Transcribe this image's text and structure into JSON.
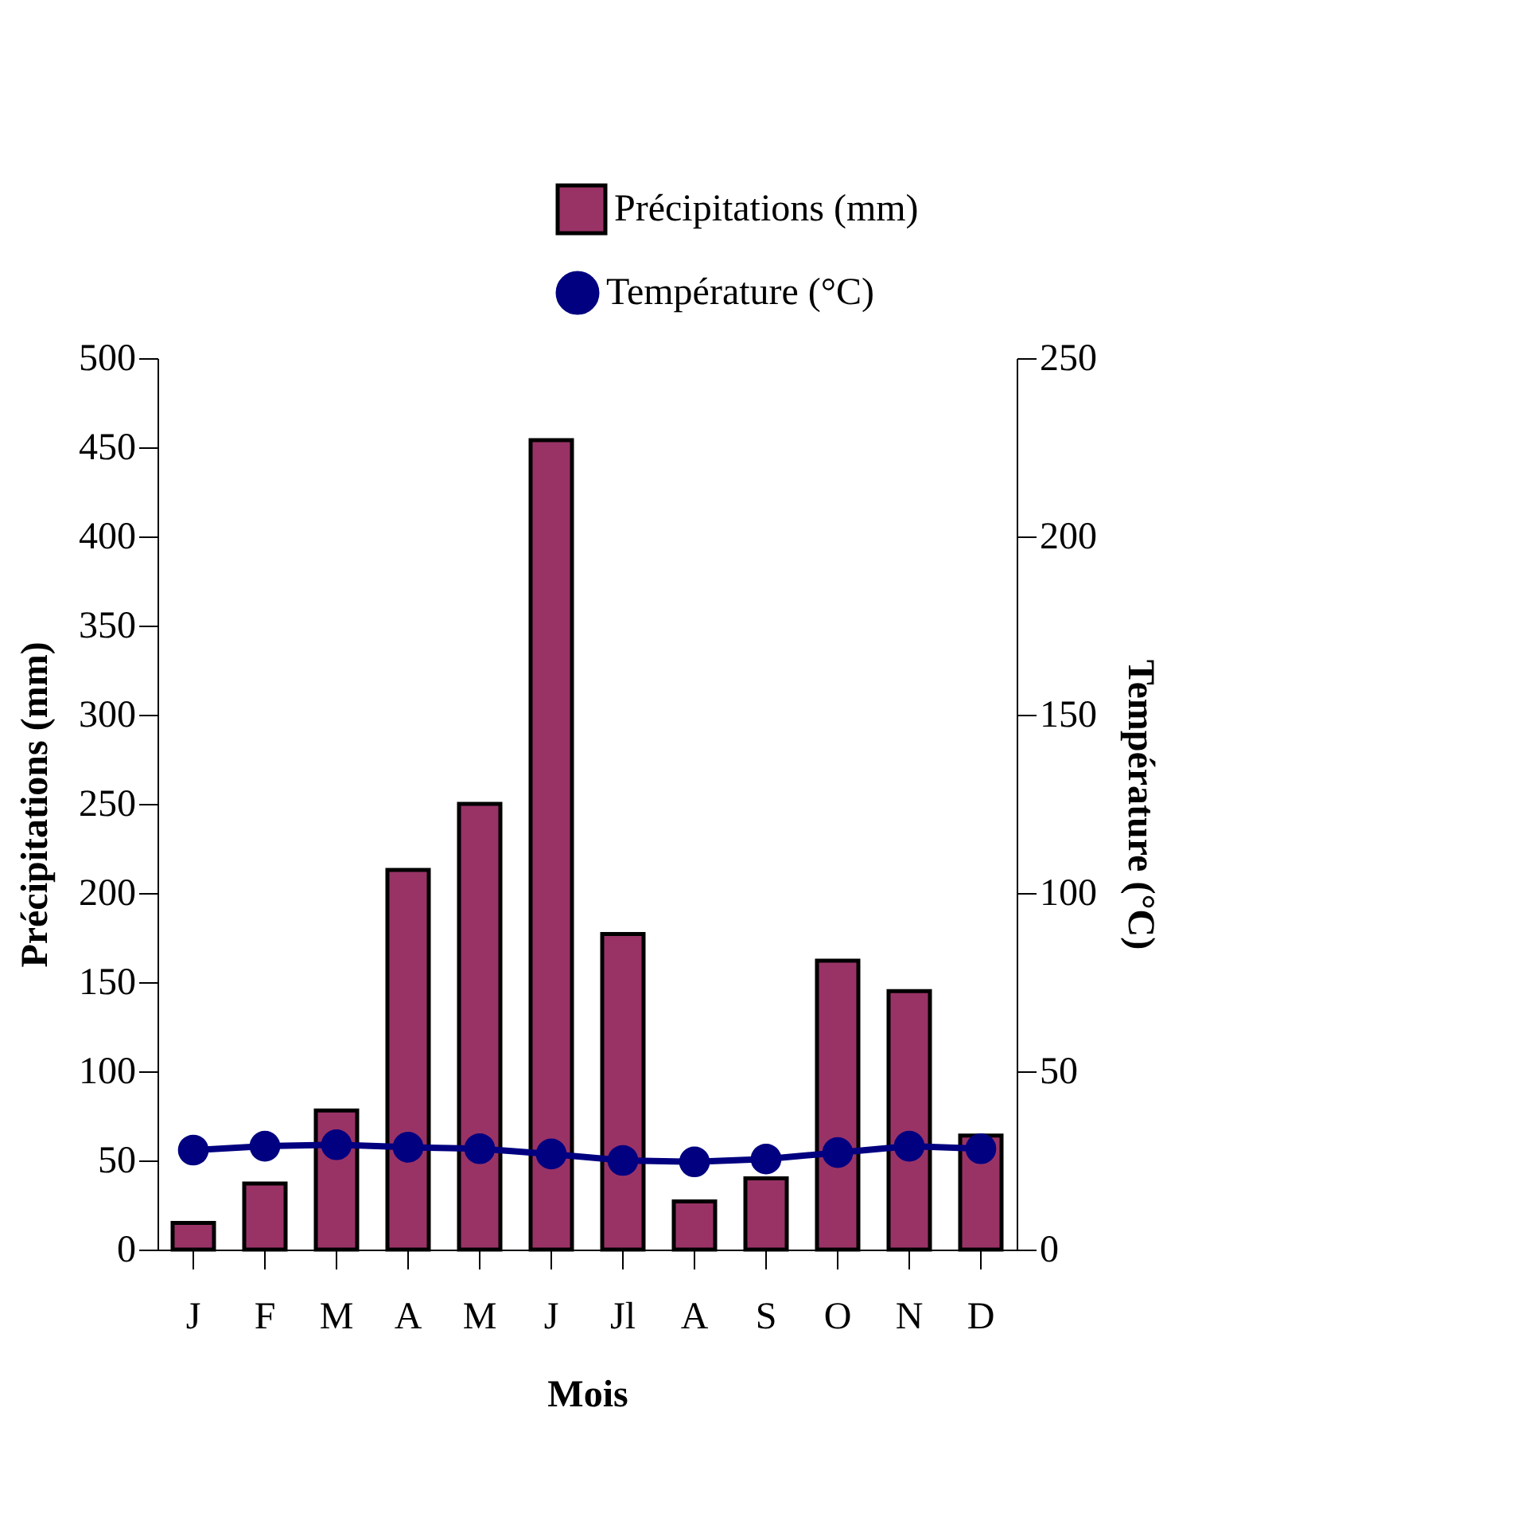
{
  "chart_data": {
    "type": "bar",
    "xlabel": "Mois",
    "ylabel": "Précipitations (mm)",
    "y2label": "Température (°C)",
    "categories": [
      "J",
      "F",
      "M",
      "A",
      "M",
      "J",
      "Jl",
      "A",
      "S",
      "O",
      "N",
      "D"
    ],
    "series": [
      {
        "name": "Précipitations (mm)",
        "color": "#993366",
        "values": [
          15,
          37,
          78,
          213,
          250,
          454,
          177,
          27,
          40,
          162,
          145,
          64
        ]
      },
      {
        "name": "Température (°C)",
        "type": "line",
        "axis": "y2",
        "color": "#000080",
        "marker": "circle",
        "values": [
          27.9,
          29.0,
          29.4,
          28.7,
          28.3,
          26.8,
          25.0,
          24.6,
          25.4,
          27.2,
          29.0,
          28.3
        ]
      }
    ],
    "ylim": [
      0,
      500
    ],
    "yticks": [
      0,
      50,
      100,
      150,
      200,
      250,
      300,
      350,
      400,
      450,
      500
    ],
    "y2lim": [
      0,
      250
    ],
    "y2ticks": [
      0,
      50,
      100,
      150,
      200,
      250
    ],
    "grid": false,
    "legend": "top"
  }
}
